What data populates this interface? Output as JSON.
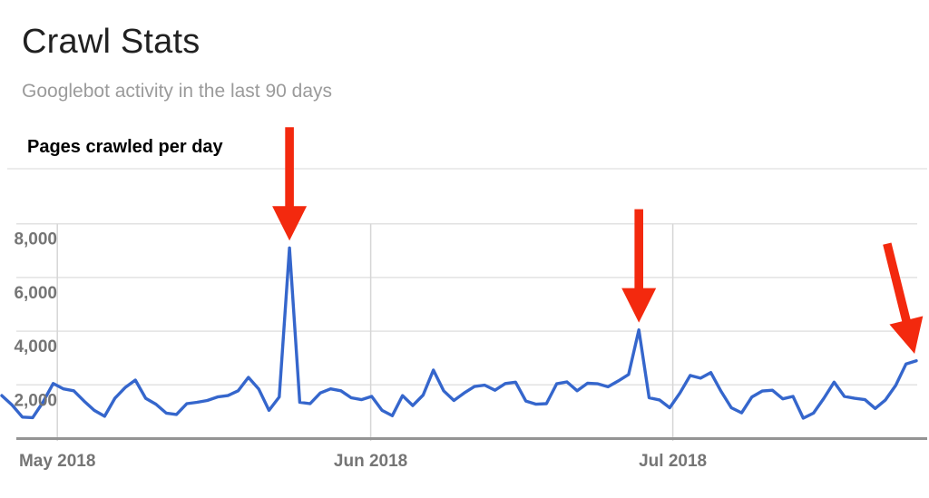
{
  "header": {
    "title": "Crawl Stats",
    "subtitle": "Googlebot activity in the last 90 days"
  },
  "chart_data": {
    "type": "line",
    "title": "Pages crawled per day",
    "grid": true,
    "legend": false,
    "x_axis": {
      "tick_labels": [
        "May 2018",
        "Jun 2018",
        "Jul 2018"
      ],
      "tick_positions_index": [
        5.4,
        35.9,
        65.3
      ]
    },
    "y_axis": {
      "tick_labels": [
        "8,000",
        "6,000",
        "4,000",
        "2,000"
      ],
      "tick_values": [
        8000,
        6000,
        4000,
        2000
      ],
      "range": [
        0,
        8000
      ]
    },
    "series": [
      {
        "name": "Pages crawled per day",
        "color": "#3566cc",
        "values": [
          1600,
          1250,
          800,
          780,
          1350,
          2050,
          1850,
          1780,
          1400,
          1050,
          830,
          1500,
          1900,
          2180,
          1500,
          1280,
          950,
          900,
          1300,
          1350,
          1420,
          1550,
          1600,
          1780,
          2280,
          1850,
          1050,
          1550,
          7100,
          1350,
          1300,
          1700,
          1850,
          1780,
          1520,
          1450,
          1570,
          1050,
          850,
          1600,
          1230,
          1620,
          2550,
          1780,
          1420,
          1700,
          1940,
          1990,
          1800,
          2050,
          2100,
          1400,
          1280,
          1300,
          2040,
          2110,
          1780,
          2060,
          2040,
          1930,
          2150,
          2390,
          4050,
          1520,
          1440,
          1150,
          1700,
          2350,
          2250,
          2460,
          1760,
          1150,
          960,
          1550,
          1770,
          1800,
          1480,
          1570,
          760,
          950,
          1500,
          2100,
          1570,
          1500,
          1450,
          1120,
          1440,
          1980,
          2780,
          2900
        ]
      }
    ],
    "annotation_color": "#f3290e",
    "annotations": [
      {
        "name": "red-arrow-1",
        "shape": "arrow-down",
        "target_index": 28,
        "rotation_deg": 0
      },
      {
        "name": "red-arrow-2",
        "shape": "arrow-down",
        "target_index": 62,
        "rotation_deg": 0
      },
      {
        "name": "red-arrow-3",
        "shape": "arrow-down",
        "target_index": 89,
        "rotation_deg": -14
      }
    ]
  }
}
